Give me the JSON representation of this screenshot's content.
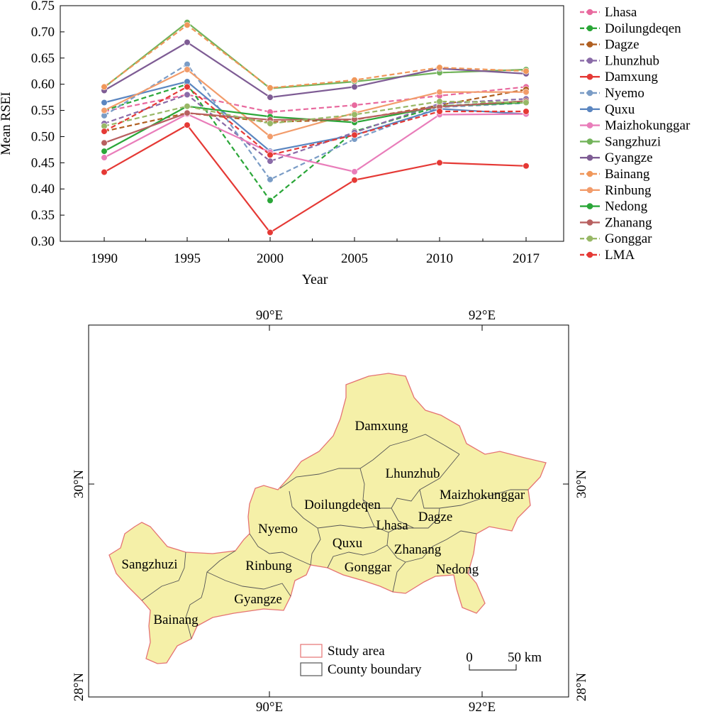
{
  "chart_data": [
    {
      "type": "line",
      "title": "",
      "xlabel": "Year",
      "ylabel": "Mean RSEI",
      "categories": [
        "1990",
        "1995",
        "2000",
        "2005",
        "2010",
        "2017"
      ],
      "ylim": [
        0.3,
        0.75
      ],
      "yticks": [
        "0.30",
        "0.35",
        "0.40",
        "0.45",
        "0.50",
        "0.55",
        "0.60",
        "0.65",
        "0.70",
        "0.75"
      ],
      "grid": false,
      "legend_position": "right",
      "series": [
        {
          "name": "Lhasa",
          "color": "#e8699e",
          "dash": true,
          "values": [
            0.548,
            0.58,
            0.547,
            0.56,
            0.578,
            0.595
          ]
        },
        {
          "name": "Doilungdeqen",
          "color": "#2aa638",
          "dash": true,
          "values": [
            0.55,
            0.6,
            0.378,
            0.51,
            0.558,
            0.568
          ]
        },
        {
          "name": "Dagze",
          "color": "#b05f20",
          "dash": true,
          "values": [
            0.51,
            0.545,
            0.528,
            0.532,
            0.56,
            0.59
          ]
        },
        {
          "name": "Lhunzhub",
          "color": "#8a6ba8",
          "dash": true,
          "values": [
            0.525,
            0.58,
            0.453,
            0.508,
            0.563,
            0.572
          ]
        },
        {
          "name": "Damxung",
          "color": "#e53935",
          "dash": false,
          "values": [
            0.432,
            0.522,
            0.317,
            0.417,
            0.45,
            0.444
          ]
        },
        {
          "name": "Nyemo",
          "color": "#7a9cc6",
          "dash": true,
          "values": [
            0.54,
            0.638,
            0.418,
            0.495,
            0.556,
            0.564
          ]
        },
        {
          "name": "Quxu",
          "color": "#5b86c0",
          "dash": false,
          "values": [
            0.565,
            0.605,
            0.472,
            0.503,
            0.553,
            0.543
          ]
        },
        {
          "name": "Maizhokunggar",
          "color": "#e97dba",
          "dash": false,
          "values": [
            0.46,
            0.543,
            0.47,
            0.433,
            0.542,
            0.543
          ]
        },
        {
          "name": "Sangzhuzi",
          "color": "#72b35a",
          "dash": false,
          "values": [
            0.594,
            0.718,
            0.592,
            0.605,
            0.622,
            0.628
          ]
        },
        {
          "name": "Gyangze",
          "color": "#7e5c94",
          "dash": false,
          "values": [
            0.588,
            0.68,
            0.575,
            0.595,
            0.63,
            0.62
          ]
        },
        {
          "name": "Bainang",
          "color": "#f0975a",
          "dash": true,
          "values": [
            0.595,
            0.713,
            0.593,
            0.608,
            0.632,
            0.625
          ]
        },
        {
          "name": "Rinbung",
          "color": "#f29c6b",
          "dash": false,
          "values": [
            0.55,
            0.628,
            0.5,
            0.545,
            0.585,
            0.585
          ]
        },
        {
          "name": "Nedong",
          "color": "#2aa638",
          "dash": false,
          "values": [
            0.472,
            0.558,
            0.538,
            0.527,
            0.558,
            0.565
          ]
        },
        {
          "name": "Zhanang",
          "color": "#b86060",
          "dash": false,
          "values": [
            0.488,
            0.545,
            0.532,
            0.533,
            0.557,
            0.568
          ]
        },
        {
          "name": "Gonggar",
          "color": "#98b866",
          "dash": true,
          "values": [
            0.52,
            0.558,
            0.525,
            0.542,
            0.567,
            0.565
          ]
        },
        {
          "name": "LMA",
          "color": "#e53935",
          "dash": true,
          "values": [
            0.51,
            0.595,
            0.465,
            0.503,
            0.548,
            0.548
          ]
        }
      ]
    }
  ],
  "map": {
    "top_lon_labels": [
      "90°E",
      "92°E"
    ],
    "bottom_lon_labels": [
      "90°E",
      "92°E"
    ],
    "left_lat_labels": [
      "30°N",
      "28°N"
    ],
    "right_lat_labels": [
      "30°N",
      "28°N"
    ],
    "county_labels": [
      "Damxung",
      "Lhunzhub",
      "Maizhokunggar",
      "Doilungdeqen",
      "Dagze",
      "Lhasa",
      "Nyemo",
      "Quxu",
      "Zhanang",
      "Sangzhuzi",
      "Rinbung",
      "Gonggar",
      "Nedong",
      "Gyangze",
      "Bainang"
    ],
    "fill_color": "#f5f0a8",
    "outline_color": "#e57373",
    "boundary_color": "#555555",
    "legend": [
      {
        "label": "Study area",
        "color": "#e57373"
      },
      {
        "label": "County boundary",
        "color": "#555555"
      }
    ],
    "scale_bar": {
      "zero": "0",
      "end": "50 km"
    }
  }
}
